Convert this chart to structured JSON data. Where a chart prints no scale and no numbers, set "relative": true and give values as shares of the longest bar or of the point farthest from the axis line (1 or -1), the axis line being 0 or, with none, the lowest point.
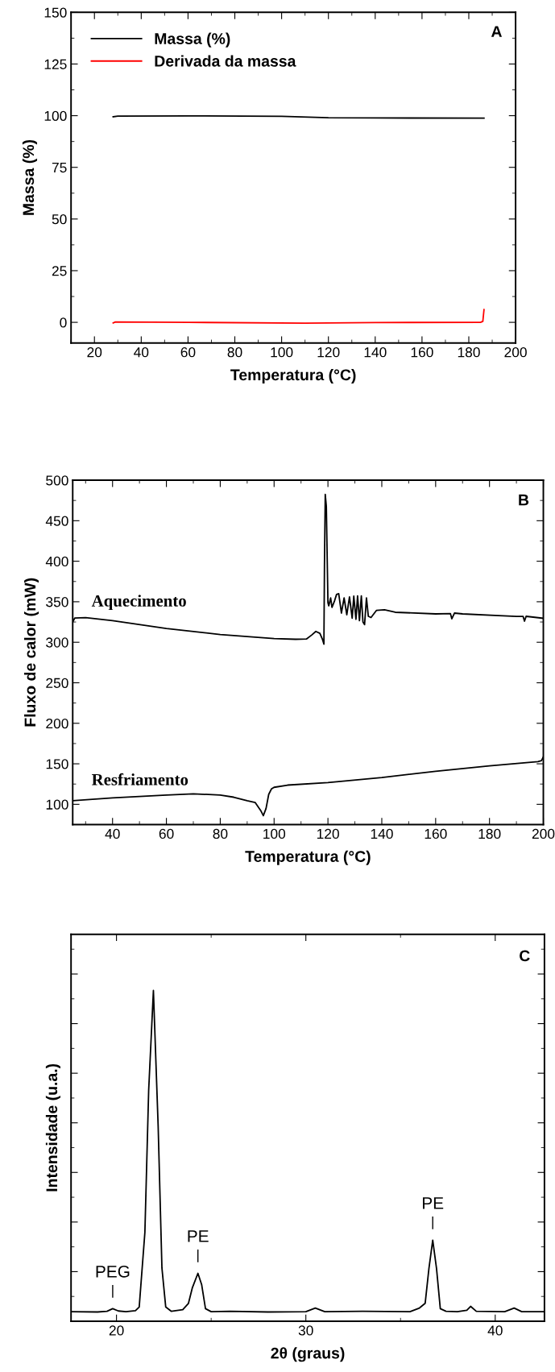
{
  "chart_data": [
    {
      "type": "line",
      "xlabel": "Temperatura (°C)",
      "ylabel": "Massa (%)",
      "xlim": [
        10,
        200
      ],
      "xticks": [
        20,
        40,
        60,
        80,
        100,
        120,
        140,
        160,
        180,
        200
      ],
      "ylim": [
        -10,
        150
      ],
      "yticks": [
        0,
        25,
        50,
        75,
        100,
        125,
        150
      ],
      "legend": "top left",
      "annotations": [
        "A"
      ],
      "series": [
        {
          "name": "Massa (%)",
          "color": "#000000",
          "x": [
            28,
            30,
            60,
            100,
            120,
            140,
            186.5
          ],
          "values": [
            99.5,
            99.8,
            99.9,
            99.7,
            99.0,
            98.9,
            98.8
          ]
        },
        {
          "name": "Derivada da massa",
          "color": "#ff0000",
          "x": [
            28,
            29,
            60,
            110,
            140,
            185,
            186,
            186.5
          ],
          "values": [
            -0.3,
            0.2,
            0,
            -0.4,
            -0.1,
            0,
            0.5,
            6.2
          ]
        }
      ]
    },
    {
      "type": "line",
      "xlabel": "Temperatura (°C)",
      "ylabel": "Fluxo de calor (mW)",
      "xlim": [
        25.2,
        200
      ],
      "xticks": [
        40,
        60,
        80,
        100,
        120,
        140,
        160,
        180,
        200
      ],
      "ylim": [
        75,
        500
      ],
      "yticks": [
        100,
        150,
        200,
        250,
        300,
        350,
        400,
        450,
        500
      ],
      "annotations": [
        "B"
      ],
      "series": [
        {
          "name": "Aquecimento",
          "color": "#000000",
          "x": [
            25.2,
            26,
            30,
            40,
            60,
            80,
            100,
            108,
            112,
            114,
            115.5,
            117,
            118,
            118.5,
            118.7,
            119,
            119.4,
            120,
            120.3,
            121,
            121.5,
            122.5,
            123.2,
            124,
            125,
            126,
            127,
            128,
            129,
            129.6,
            130.4,
            131,
            131.7,
            132.4,
            133,
            133.6,
            134.3,
            135,
            136,
            138,
            141,
            145,
            160,
            165.5,
            166,
            167,
            170,
            190,
            192.5,
            193,
            193.6,
            200
          ],
          "values": [
            325,
            330,
            330.5,
            326.6,
            317,
            309.5,
            304.6,
            303.7,
            304,
            309,
            313.4,
            311,
            303.3,
            297.6,
            393,
            482.4,
            468,
            349,
            345,
            354.7,
            343,
            351.6,
            359,
            360,
            336,
            354.7,
            334,
            356,
            329.6,
            357,
            328.3,
            357.3,
            326.6,
            357.3,
            325,
            321.7,
            354.7,
            332,
            330.5,
            339.3,
            340,
            337,
            335,
            335.3,
            329,
            336,
            335,
            331.8,
            331.8,
            326,
            332,
            329.6
          ]
        },
        {
          "name": "Resfriamento",
          "color": "#000000",
          "x": [
            25.2,
            40,
            60,
            70,
            80,
            85,
            90,
            93,
            95,
            96,
            97,
            98,
            99,
            100,
            105,
            120,
            140,
            160,
            180,
            198,
            199.3,
            200
          ],
          "values": [
            104.4,
            108,
            111.4,
            113,
            111.4,
            108.8,
            104.4,
            102.2,
            92.5,
            86,
            94.8,
            112.3,
            118.9,
            121,
            123.7,
            126.8,
            133,
            140.8,
            147.4,
            152.7,
            154,
            158.5
          ]
        }
      ]
    },
    {
      "type": "line",
      "relative": true,
      "xlabel": "2θ (graus)",
      "ylabel": "Intensidade (u.a.)",
      "xlim": [
        17.6,
        42.6
      ],
      "xticks": [
        20,
        30,
        40
      ],
      "annotations": [
        "C",
        {
          "text": "PEG",
          "x": 19.8,
          "y": 0.038
        },
        {
          "text": "PE",
          "x": 24.3,
          "y": 0.145
        },
        {
          "text": "PE",
          "x": 36.7,
          "y": 0.245
        }
      ],
      "series": [
        {
          "color": "#000000",
          "x": [
            17.6,
            19.0,
            19.5,
            19.8,
            20.1,
            20.5,
            21.0,
            21.2,
            21.5,
            21.7,
            21.95,
            22.2,
            22.4,
            22.6,
            22.9,
            23.5,
            23.8,
            24.0,
            24.3,
            24.5,
            24.7,
            25.0,
            26.0,
            28.0,
            30.0,
            30.5,
            31.0,
            33.0,
            35.5,
            36.0,
            36.3,
            36.5,
            36.7,
            36.9,
            37.1,
            37.4,
            38.0,
            38.5,
            38.7,
            39.0,
            40.5,
            41.0,
            41.4,
            42.6
          ],
          "values": [
            0.029,
            0.028,
            0.03,
            0.038,
            0.031,
            0.029,
            0.032,
            0.043,
            0.269,
            0.699,
            1.0,
            0.591,
            0.161,
            0.043,
            0.03,
            0.035,
            0.054,
            0.1,
            0.145,
            0.11,
            0.038,
            0.029,
            0.03,
            0.028,
            0.029,
            0.04,
            0.029,
            0.03,
            0.029,
            0.04,
            0.054,
            0.16,
            0.245,
            0.16,
            0.038,
            0.03,
            0.029,
            0.033,
            0.045,
            0.03,
            0.029,
            0.04,
            0.029,
            0.029
          ]
        }
      ]
    }
  ]
}
